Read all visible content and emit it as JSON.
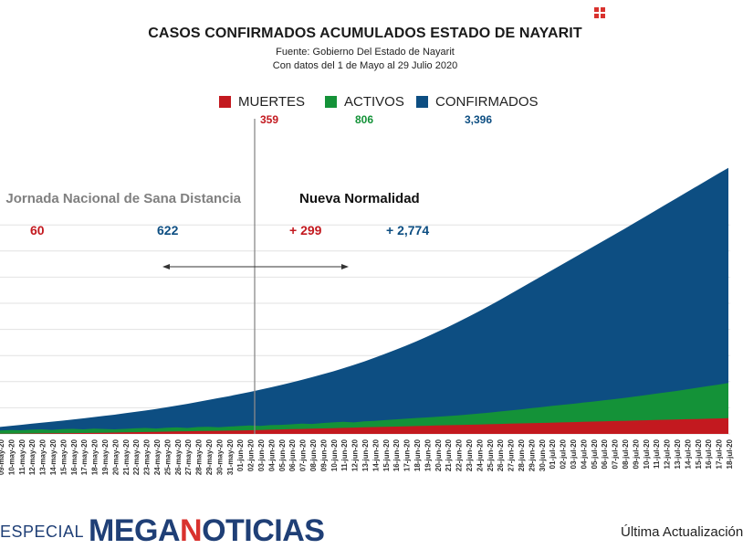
{
  "header": {
    "title": "CASOS CONFIRMADOS ACUMULADOS ESTADO DE NAYARIT",
    "source": "Fuente: Gobierno Del Estado de Nayarit",
    "date_range": "Con datos del 1 de Mayo al 29 Julio 2020"
  },
  "legend": {
    "muertes": {
      "label": "MUERTES",
      "value": "359",
      "color": "#c3191f"
    },
    "activos": {
      "label": "ACTIVOS",
      "value": "806",
      "color": "#149238"
    },
    "confirmados": {
      "label": "CONFIRMADOS",
      "value": "3,396",
      "color": "#0d4e82"
    }
  },
  "annotations": {
    "phase1": "Jornada Nacional de Sana Distancia",
    "phase2": "Nueva Normalidad",
    "phase1_muertes": "60",
    "phase1_confirmados": "622",
    "phase2_muertes": "+ 299",
    "phase2_confirmados": "+ 2,774"
  },
  "footer": {
    "especial": "ESPECIAL",
    "brand_prefix": "MEGA",
    "brand_highlight": "N",
    "brand_suffix": "OTICIAS",
    "update": "Última Actualización"
  },
  "chart_data": {
    "type": "area",
    "title": "CASOS CONFIRMADOS ACUMULADOS ESTADO DE NAYARIT",
    "x": [
      "09-may-20",
      "10-may-20",
      "11-may-20",
      "12-may-20",
      "13-may-20",
      "14-may-20",
      "15-may-20",
      "16-may-20",
      "17-may-20",
      "18-may-20",
      "19-may-20",
      "20-may-20",
      "21-may-20",
      "22-may-20",
      "23-may-20",
      "24-may-20",
      "25-may-20",
      "26-may-20",
      "27-may-20",
      "28-may-20",
      "29-may-20",
      "30-may-20",
      "31-may-20",
      "01-jun-20",
      "02-jun-20",
      "03-jun-20",
      "04-jun-20",
      "05-jun-20",
      "06-jun-20",
      "07-jun-20",
      "08-jun-20",
      "09-jun-20",
      "10-jun-20",
      "11-jun-20",
      "12-jun-20",
      "13-jun-20",
      "14-jun-20",
      "15-jun-20",
      "16-jun-20",
      "17-jun-20",
      "18-jun-20",
      "19-jun-20",
      "20-jun-20",
      "21-jun-20",
      "22-jun-20",
      "23-jun-20",
      "24-jun-20",
      "25-jun-20",
      "26-jun-20",
      "27-jun-20",
      "28-jun-20",
      "29-jun-20",
      "30-jun-20",
      "01-jul-20",
      "02-jul-20",
      "03-jul-20",
      "04-jul-20",
      "05-jul-20",
      "06-jul-20",
      "07-jul-20",
      "08-jul-20",
      "09-jul-20",
      "10-jul-20",
      "11-jul-20",
      "12-jul-20",
      "13-jul-20",
      "14-jul-20",
      "15-jul-20",
      "16-jul-20",
      "17-jul-20",
      "18-jul-20"
    ],
    "series": [
      {
        "name": "CONFIRMADOS",
        "color": "#0d4e82",
        "values": [
          80,
          92,
          104,
          116,
          128,
          140,
          152,
          164,
          178,
          192,
          206,
          220,
          236,
          252,
          268,
          286,
          304,
          324,
          344,
          366,
          388,
          410,
          432,
          456,
          480,
          506,
          532,
          560,
          588,
          618,
          650,
          682,
          716,
          752,
          790,
          830,
          872,
          916,
          962,
          1010,
          1060,
          1112,
          1166,
          1222,
          1280,
          1340,
          1402,
          1466,
          1532,
          1600,
          1668,
          1736,
          1804,
          1872,
          1940,
          2008,
          2076,
          2144,
          2212,
          2280,
          2348,
          2418,
          2488,
          2558,
          2628,
          2698,
          2768,
          2838,
          2908,
          2978,
          3046
        ]
      },
      {
        "name": "ACTIVOS",
        "color": "#149238",
        "values": [
          40,
          44,
          42,
          48,
          52,
          46,
          54,
          58,
          52,
          60,
          56,
          52,
          58,
          64,
          68,
          62,
          70,
          74,
          68,
          78,
          82,
          76,
          84,
          90,
          96,
          92,
          100,
          104,
          110,
          118,
          114,
          124,
          132,
          138,
          132,
          144,
          150,
          158,
          166,
          174,
          182,
          188,
          196,
          204,
          212,
          222,
          232,
          244,
          256,
          268,
          280,
          294,
          306,
          320,
          332,
          344,
          358,
          370,
          384,
          398,
          412,
          428,
          444,
          460,
          476,
          492,
          510,
          528,
          546,
          564,
          584
        ]
      },
      {
        "name": "MUERTES",
        "color": "#c3191f",
        "values": [
          2,
          3,
          4,
          5,
          6,
          7,
          8,
          9,
          10,
          12,
          14,
          16,
          18,
          20,
          22,
          24,
          26,
          28,
          30,
          32,
          34,
          36,
          38,
          40,
          42,
          45,
          48,
          51,
          54,
          57,
          60,
          63,
          66,
          69,
          72,
          75,
          78,
          81,
          84,
          87,
          90,
          93,
          96,
          99,
          102,
          105,
          108,
          111,
          114,
          117,
          120,
          123,
          126,
          129,
          132,
          135,
          138,
          141,
          144,
          147,
          150,
          153,
          156,
          159,
          162,
          165,
          168,
          171,
          174,
          177,
          180
        ]
      }
    ],
    "divider_at": "02-jun-20",
    "grid": true,
    "legend_position": "top-center"
  }
}
